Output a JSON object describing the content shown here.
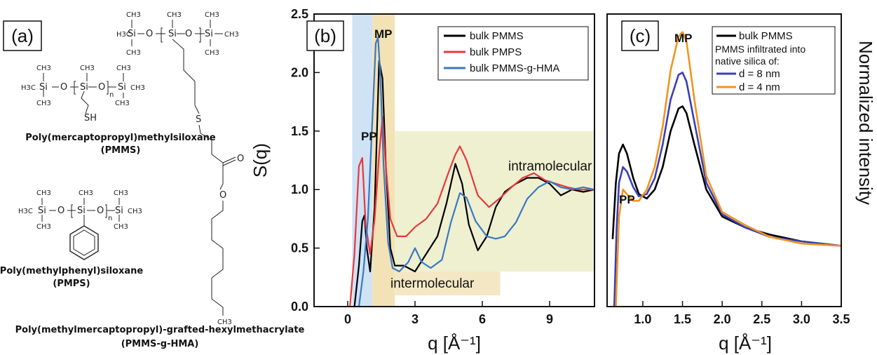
{
  "panel_a": {
    "label": "(a)",
    "pmms": {
      "name": "Poly(mercaptopropyl)methylsiloxane",
      "abbr": "(PMMS)"
    },
    "pmps": {
      "name": "Poly(methylphenyl)siloxane",
      "abbr": "(PMPS)"
    },
    "hma": {
      "name": "Poly(methylmercaptopropyl)-grafted-hexylmethacrylate",
      "abbr": "(PMMS-g-HMA)"
    },
    "atoms": {
      "h3c": "H3C",
      "ch3": "CH3",
      "si": "Si",
      "o": "O",
      "s": "S",
      "sh": "SH",
      "n": "n"
    }
  },
  "chart_data": [
    {
      "panel": "(b)",
      "type": "line",
      "xlabel": "q [Å⁻¹]",
      "ylabel": "S(q)",
      "xlim": [
        -1.5,
        11
      ],
      "ylim": [
        0,
        2.5
      ],
      "xticks": [
        "0",
        "3",
        "6",
        "9"
      ],
      "yticks": [
        "0.0",
        "0.5",
        "1.0",
        "1.5",
        "2.0",
        "2.5"
      ],
      "grid": false,
      "legend_position": "top-right",
      "annotations": [
        "PP",
        "MP",
        "intramolecular",
        "intermolecular"
      ],
      "series": [
        {
          "name": "bulk PMMS",
          "color": "#000000",
          "x": [
            0.3,
            0.5,
            0.65,
            0.75,
            0.85,
            1.0,
            1.2,
            1.4,
            1.55,
            1.7,
            1.9,
            2.1,
            2.5,
            3.0,
            3.5,
            4.0,
            4.4,
            4.8,
            5.1,
            5.4,
            5.8,
            6.2,
            6.6,
            7.0,
            7.5,
            8.0,
            8.5,
            9.0,
            9.5,
            10.0,
            10.5,
            11.0
          ],
          "y": [
            0.0,
            0.35,
            0.73,
            0.78,
            0.5,
            0.3,
            0.85,
            2.1,
            1.95,
            1.2,
            0.5,
            0.35,
            0.35,
            0.3,
            0.45,
            0.6,
            0.88,
            1.22,
            1.05,
            0.7,
            0.48,
            0.6,
            0.85,
            0.98,
            1.05,
            1.1,
            1.1,
            1.05,
            0.95,
            1.0,
            0.98,
            1.0
          ]
        },
        {
          "name": "bulk PMPS",
          "color": "#e8383d",
          "x": [
            0.1,
            0.3,
            0.5,
            0.65,
            0.8,
            1.0,
            1.2,
            1.4,
            1.55,
            1.7,
            1.9,
            2.2,
            2.6,
            3.0,
            3.5,
            4.0,
            4.5,
            4.8,
            5.0,
            5.3,
            5.8,
            6.3,
            6.8,
            7.3,
            7.8,
            8.3,
            8.8,
            9.3,
            9.8,
            10.3,
            11.0
          ],
          "y": [
            0.0,
            0.45,
            1.2,
            1.27,
            0.7,
            0.45,
            0.75,
            1.3,
            1.62,
            1.2,
            0.75,
            0.6,
            0.6,
            0.68,
            0.75,
            0.88,
            1.15,
            1.3,
            1.37,
            1.25,
            0.95,
            0.85,
            0.93,
            1.02,
            1.1,
            1.14,
            1.08,
            1.05,
            1.02,
            1.0,
            1.0
          ]
        },
        {
          "name": "bulk PMMS-g-HMA",
          "color": "#3a78c4",
          "x": [
            0.5,
            0.7,
            0.9,
            1.1,
            1.25,
            1.35,
            1.45,
            1.6,
            1.8,
            2.0,
            2.3,
            2.7,
            3.0,
            3.3,
            3.7,
            4.2,
            4.6,
            5.0,
            5.3,
            5.7,
            6.2,
            6.6,
            7.0,
            7.5,
            8.0,
            8.5,
            9.0,
            9.5,
            10.0,
            10.5,
            11.0
          ],
          "y": [
            0.0,
            0.3,
            0.75,
            1.6,
            2.25,
            2.3,
            2.0,
            1.2,
            0.55,
            0.33,
            0.3,
            0.38,
            0.5,
            0.38,
            0.33,
            0.4,
            0.72,
            0.97,
            0.93,
            0.73,
            0.6,
            0.58,
            0.6,
            0.72,
            0.92,
            1.02,
            1.07,
            1.02,
            1.0,
            1.02,
            1.0
          ]
        }
      ]
    },
    {
      "panel": "(c)",
      "type": "line",
      "xlabel": "q [Å⁻¹]",
      "ylabel": "Normalized intensity",
      "xlim": [
        0.55,
        3.5
      ],
      "ylim": [
        0,
        1.3
      ],
      "xticks": [
        "1.0",
        "1.5",
        "2.0",
        "2.5",
        "3.0",
        "3.5"
      ],
      "grid": false,
      "legend_position": "top-right",
      "legend_note": "PMMS infiltrated into native silica of:",
      "annotations": [
        "PP",
        "MP"
      ],
      "series": [
        {
          "name": "bulk PMMS",
          "color": "#000000",
          "x": [
            0.62,
            0.66,
            0.7,
            0.75,
            0.8,
            0.88,
            0.95,
            1.05,
            1.15,
            1.25,
            1.35,
            1.45,
            1.5,
            1.55,
            1.65,
            1.8,
            2.0,
            2.3,
            2.6,
            3.0,
            3.5
          ],
          "y": [
            0.3,
            0.55,
            0.68,
            0.72,
            0.68,
            0.57,
            0.5,
            0.48,
            0.52,
            0.62,
            0.78,
            0.88,
            0.89,
            0.86,
            0.72,
            0.52,
            0.4,
            0.35,
            0.32,
            0.29,
            0.27
          ]
        },
        {
          "name": "d = 8 nm",
          "color": "#3b3fb8",
          "x": [
            0.64,
            0.67,
            0.7,
            0.75,
            0.8,
            0.88,
            0.95,
            1.05,
            1.15,
            1.25,
            1.35,
            1.45,
            1.5,
            1.55,
            1.65,
            1.8,
            2.0,
            2.3,
            2.6,
            3.0,
            3.5
          ],
          "y": [
            0.0,
            0.35,
            0.55,
            0.62,
            0.6,
            0.53,
            0.49,
            0.5,
            0.57,
            0.72,
            0.92,
            1.03,
            1.04,
            1.0,
            0.82,
            0.55,
            0.41,
            0.35,
            0.31,
            0.29,
            0.27
          ]
        },
        {
          "name": "d = 4 nm",
          "color": "#f0951f",
          "x": [
            0.66,
            0.7,
            0.75,
            0.8,
            0.88,
            0.95,
            1.05,
            1.15,
            1.25,
            1.35,
            1.45,
            1.5,
            1.55,
            1.65,
            1.8,
            2.0,
            2.3,
            2.6,
            3.0,
            3.5
          ],
          "y": [
            0.0,
            0.4,
            0.52,
            0.5,
            0.47,
            0.47,
            0.52,
            0.62,
            0.8,
            1.05,
            1.2,
            1.22,
            1.18,
            0.92,
            0.58,
            0.42,
            0.36,
            0.31,
            0.28,
            0.27
          ]
        }
      ]
    }
  ]
}
